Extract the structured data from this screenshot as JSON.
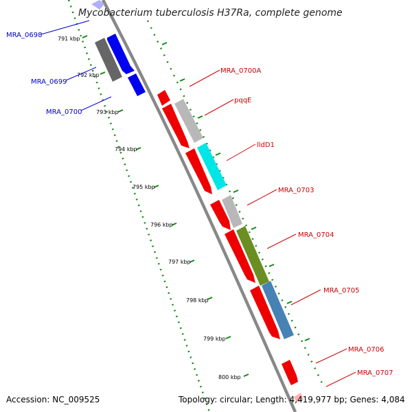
{
  "title": "Mycobacterium tuberculosis H37Ra, complete genome",
  "footer": {
    "accession": "Accession: NC_009525",
    "summary": "Topology: circular; Length: 4,419,977 bp; Genes: 4,084"
  },
  "ticks": [
    "791 kbp",
    "792 kbp",
    "793 kbp",
    "794 kbp",
    "795 kbp",
    "796 kbp",
    "797 kbp",
    "798 kbp",
    "799 kbp",
    "800 kbp"
  ],
  "genes_left": [
    {
      "label": "MRA_0698",
      "color": "#0000cc"
    },
    {
      "label": "MRA_0699",
      "color": "#0000cc"
    },
    {
      "label": "MRA_0700",
      "color": "#0000cc"
    }
  ],
  "genes_right": [
    {
      "label": "MRA_0700A",
      "color": "#cc0000"
    },
    {
      "label": "pqqE",
      "color": "#cc0000"
    },
    {
      "label": "lldD1",
      "color": "#cc0000"
    },
    {
      "label": "MRA_0703",
      "color": "#cc0000"
    },
    {
      "label": "MRA_0704",
      "color": "#cc0000"
    },
    {
      "label": "MRA_0705",
      "color": "#cc0000"
    },
    {
      "label": "MRA_0706",
      "color": "#cc0000"
    },
    {
      "label": "MRA_0707",
      "color": "#cc0000"
    }
  ],
  "colors": {
    "backbone": "#888888",
    "dots": "#118811",
    "forward_gene": "#ee0000",
    "reverse_gene": "#0000ee",
    "cog_gray": "#b8b8b8",
    "cog_cyan": "#00e6e6",
    "cog_olive": "#6b8e23",
    "cog_steel": "#4682b4",
    "cog_dark": "#666666"
  }
}
